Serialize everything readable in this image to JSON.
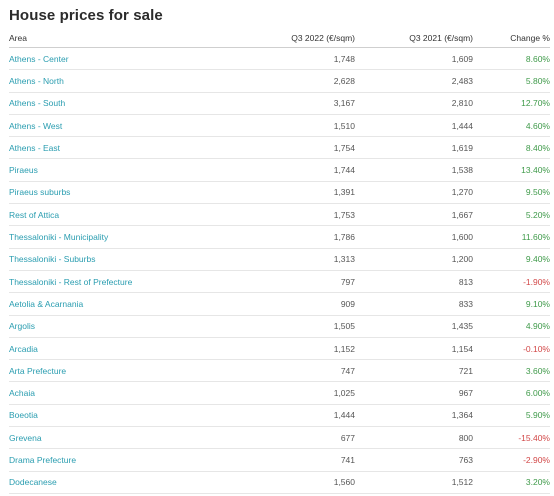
{
  "page": {
    "title": "House prices for sale"
  },
  "table": {
    "headers": [
      "Area",
      "Q3 2022 (€/sqm)",
      "Q3 2021 (€/sqm)",
      "Change %"
    ],
    "rows": [
      {
        "area": "Athens - Center",
        "q3_2022": "1,748",
        "q3_2021": "1,609",
        "change": "8.60%"
      },
      {
        "area": "Athens - North",
        "q3_2022": "2,628",
        "q3_2021": "2,483",
        "change": "5.80%"
      },
      {
        "area": "Athens - South",
        "q3_2022": "3,167",
        "q3_2021": "2,810",
        "change": "12.70%"
      },
      {
        "area": "Athens - West",
        "q3_2022": "1,510",
        "q3_2021": "1,444",
        "change": "4.60%"
      },
      {
        "area": "Athens - East",
        "q3_2022": "1,754",
        "q3_2021": "1,619",
        "change": "8.40%"
      },
      {
        "area": "Piraeus",
        "q3_2022": "1,744",
        "q3_2021": "1,538",
        "change": "13.40%"
      },
      {
        "area": "Piraeus suburbs",
        "q3_2022": "1,391",
        "q3_2021": "1,270",
        "change": "9.50%"
      },
      {
        "area": "Rest of Attica",
        "q3_2022": "1,753",
        "q3_2021": "1,667",
        "change": "5.20%"
      },
      {
        "area": "Thessaloniki - Municipality",
        "q3_2022": "1,786",
        "q3_2021": "1,600",
        "change": "11.60%"
      },
      {
        "area": "Thessaloniki - Suburbs",
        "q3_2022": "1,313",
        "q3_2021": "1,200",
        "change": "9.40%"
      },
      {
        "area": "Thessaloniki - Rest of Prefecture",
        "q3_2022": "797",
        "q3_2021": "813",
        "change": "-1.90%"
      },
      {
        "area": "Aetolia & Acarnania",
        "q3_2022": "909",
        "q3_2021": "833",
        "change": "9.10%"
      },
      {
        "area": "Argolis",
        "q3_2022": "1,505",
        "q3_2021": "1,435",
        "change": "4.90%"
      },
      {
        "area": "Arcadia",
        "q3_2022": "1,152",
        "q3_2021": "1,154",
        "change": "-0.10%"
      },
      {
        "area": "Arta Prefecture",
        "q3_2022": "747",
        "q3_2021": "721",
        "change": "3.60%"
      },
      {
        "area": "Achaia",
        "q3_2022": "1,025",
        "q3_2021": "967",
        "change": "6.00%"
      },
      {
        "area": "Boeotia",
        "q3_2022": "1,444",
        "q3_2021": "1,364",
        "change": "5.90%"
      },
      {
        "area": "Grevena",
        "q3_2022": "677",
        "q3_2021": "800",
        "change": "-15.40%"
      },
      {
        "area": "Drama Prefecture",
        "q3_2022": "741",
        "q3_2021": "763",
        "change": "-2.90%"
      },
      {
        "area": "Dodecanese",
        "q3_2022": "1,560",
        "q3_2021": "1,512",
        "change": "3.20%"
      }
    ]
  },
  "colors": {
    "area_link": "#2a9db0",
    "positive": "#3f9a4a",
    "negative": "#d24848"
  }
}
